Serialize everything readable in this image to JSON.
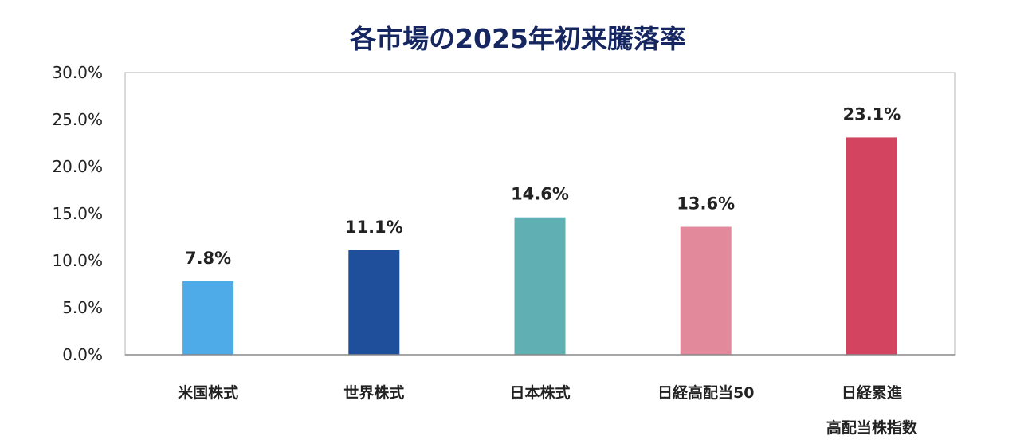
{
  "chart_data": {
    "type": "bar",
    "title": "各市場の2025年初来騰落率",
    "xlabel": "",
    "ylabel": "",
    "ylim": [
      0,
      30
    ],
    "yticks": [
      "0.0%",
      "5.0%",
      "10.0%",
      "15.0%",
      "20.0%",
      "25.0%",
      "30.0%"
    ],
    "grid": false,
    "categories": [
      [
        "米国株式"
      ],
      [
        "世界株式"
      ],
      [
        "日本株式"
      ],
      [
        "日経高配当50"
      ],
      [
        "日経累進",
        "高配当株指数"
      ]
    ],
    "values": [
      7.8,
      11.1,
      14.6,
      13.6,
      23.1
    ],
    "data_labels": [
      "7.8%",
      "11.1%",
      "14.6%",
      "13.6%",
      "23.1%"
    ],
    "colors": [
      "#4FAAE8",
      "#1F4E9B",
      "#5FAFB3",
      "#E28A9C",
      "#D24460"
    ]
  }
}
